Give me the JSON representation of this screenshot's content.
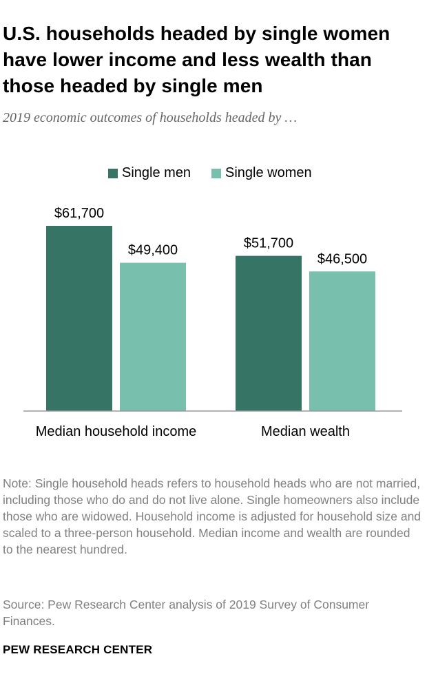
{
  "title": "U.S. households headed by single women have lower income and less wealth than those headed by single men",
  "subtitle": "2019 economic outcomes of households headed by …",
  "note": "Note: Single household heads refers to household heads who are not married, including those who do and do not live alone. Single homeowners also include those who are widowed. Household income is adjusted for household size and scaled to a three-person household. Median income and wealth are rounded to the nearest hundred.",
  "source": "Source: Pew Research Center analysis of 2019 Survey of Consumer Finances.",
  "organization": "PEW RESEARCH CENTER",
  "colors": {
    "single_men": "#367565",
    "single_women": "#78bfad",
    "baseline": "#999999"
  },
  "chart_data": {
    "type": "bar",
    "categories": [
      "Median household income",
      "Median wealth"
    ],
    "series": [
      {
        "name": "Single men",
        "values": [
          61700,
          51700
        ],
        "labels": [
          "$61,700",
          "$51,700"
        ]
      },
      {
        "name": "Single women",
        "values": [
          49400,
          46500
        ],
        "labels": [
          "$49,400",
          "$46,500"
        ]
      }
    ],
    "ylim": [
      0,
      61700
    ],
    "legend_position": "top-center",
    "grid": false
  }
}
